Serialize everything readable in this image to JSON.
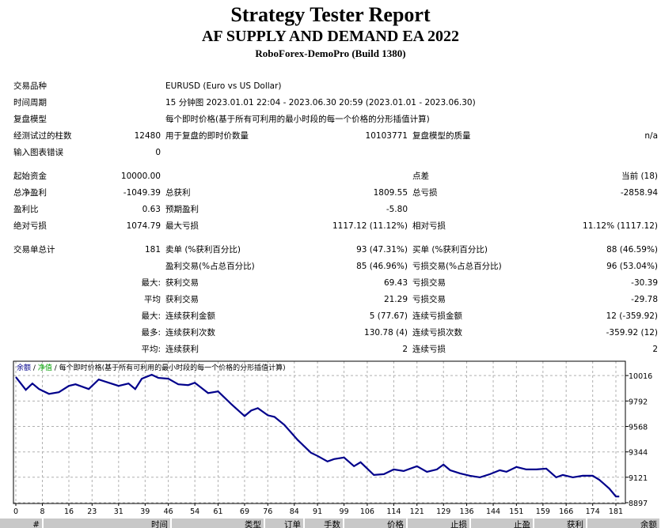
{
  "header": {
    "title": "Strategy Tester Report",
    "ea_name": "AF SUPPLY AND DEMAND EA 2022",
    "server": "RoboForex-DemoPro (Build 1380)"
  },
  "stats": [
    [
      "交易品种",
      "",
      "EURUSD (Euro vs US Dollar)",
      "",
      "",
      ""
    ],
    [
      "时间周期",
      "",
      "15 分钟图 2023.01.01 22:04 - 2023.06.30 20:59 (2023.01.01 - 2023.06.30)",
      "",
      "",
      ""
    ],
    [
      "复盘模型",
      "",
      "每个即时价格(基于所有可利用的最小时段的每一个价格的分形插值计算)",
      "",
      "",
      ""
    ],
    [
      "经测试过的柱数",
      "12480",
      "用于复盘的即时价数量",
      "10103771",
      "复盘模型的质量",
      "n/a"
    ],
    [
      "输入图表错误",
      "0",
      "",
      "",
      "",
      ""
    ],
    [],
    [
      "起始资金",
      "10000.00",
      "",
      "",
      "点差",
      "当前 (18)"
    ],
    [
      "总净盈利",
      "-1049.39",
      "总获利",
      "1809.55",
      "总亏损",
      "-2858.94"
    ],
    [
      "盈利比",
      "0.63",
      "预期盈利",
      "-5.80",
      "",
      ""
    ],
    [
      "绝对亏损",
      "1074.79",
      "最大亏损",
      "1117.12 (11.12%)",
      "相对亏损",
      "11.12% (1117.12)"
    ],
    [],
    [
      "交易单总计",
      "181",
      "卖单 (%获利百分比)",
      "93 (47.31%)",
      "买单 (%获利百分比)",
      "88 (46.59%)"
    ],
    [
      "",
      "",
      "盈利交易(%占总百分比)",
      "85 (46.96%)",
      "亏损交易(%占总百分比)",
      "96 (53.04%)"
    ],
    [
      "",
      "最大:",
      "获利交易",
      "69.43",
      "亏损交易",
      "-30.39"
    ],
    [
      "",
      "平均",
      "获利交易",
      "21.29",
      "亏损交易",
      "-29.78"
    ],
    [
      "",
      "最大:",
      "连续获利金额",
      "5 (77.67)",
      "连续亏损金额",
      "12 (-359.92)"
    ],
    [
      "",
      "最多:",
      "连续获利次数",
      "130.78 (4)",
      "连续亏损次数",
      "-359.92 (12)"
    ],
    [
      "",
      "平均:",
      "连续获利",
      "2",
      "连续亏损",
      "2"
    ]
  ],
  "chart_data": {
    "type": "line",
    "legend": {
      "balance": "余额",
      "sep": "/",
      "equity": "净值",
      "model": "/ 每个即时价格(基于所有可利用的最小时段的每一个价格的分形插值计算)"
    },
    "colors": {
      "balance": "#00008b",
      "equity": "#00a000",
      "grid": "#b0b0b0"
    },
    "x_ticks": [
      0,
      8,
      16,
      23,
      31,
      39,
      46,
      54,
      61,
      69,
      76,
      84,
      91,
      99,
      106,
      114,
      121,
      129,
      136,
      144,
      151,
      159,
      166,
      174,
      181
    ],
    "y_ticks": [
      10016,
      9792,
      9568,
      9344,
      9121,
      8897
    ],
    "xlim": [
      0,
      182
    ],
    "ylim": [
      8890,
      10142
    ],
    "series": [
      {
        "name": "余额",
        "x": [
          0,
          3,
          5,
          7,
          10,
          13,
          16,
          18,
          20,
          22,
          25,
          28,
          31,
          34,
          36,
          38,
          41,
          43,
          46,
          49,
          52,
          54,
          58,
          61,
          65,
          69,
          71,
          73,
          76,
          78,
          81,
          85,
          89,
          91,
          94,
          96,
          99,
          102,
          104,
          108,
          111,
          114,
          117,
          121,
          124,
          127,
          129,
          131,
          134,
          137,
          140,
          143,
          146,
          148,
          151,
          154,
          157,
          160,
          163,
          165,
          168,
          171,
          174,
          176,
          179,
          181,
          182
        ],
        "y": [
          10002,
          9890,
          9946,
          9897,
          9855,
          9869,
          9925,
          9939,
          9918,
          9897,
          9981,
          9953,
          9925,
          9946,
          9897,
          9988,
          10023,
          9995,
          9988,
          9939,
          9932,
          9953,
          9862,
          9876,
          9764,
          9659,
          9708,
          9729,
          9666,
          9652,
          9582,
          9449,
          9337,
          9309,
          9260,
          9281,
          9295,
          9218,
          9253,
          9141,
          9148,
          9190,
          9176,
          9218,
          9169,
          9190,
          9232,
          9183,
          9155,
          9134,
          9120,
          9148,
          9183,
          9169,
          9211,
          9190,
          9190,
          9197,
          9120,
          9141,
          9120,
          9134,
          9134,
          9099,
          9022,
          8952,
          8952
        ]
      }
    ]
  },
  "table_header": [
    "#",
    "时间",
    "类型",
    "订单",
    "手数",
    "价格",
    "止损",
    "止盈",
    "获利",
    "余额"
  ]
}
